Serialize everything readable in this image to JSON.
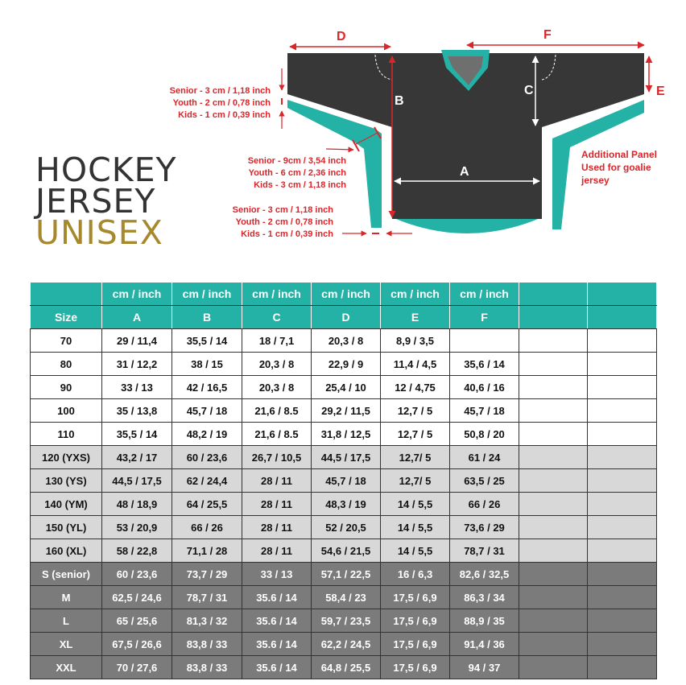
{
  "title": {
    "line1": "HOCKEY",
    "line2": "JERSEY",
    "line3": "UNISEX"
  },
  "diagram": {
    "letters": {
      "A": "A",
      "B": "B",
      "C": "C",
      "D": "D",
      "E": "E",
      "F": "F"
    },
    "note_cuff": [
      "Senior - 3 cm / 1,18 inch",
      "Youth - 2 cm / 0,78 inch",
      "Kids - 1 cm / 0,39 inch"
    ],
    "note_panel_width": [
      "Senior - 9cm / 3,54 inch",
      "Youth - 6 cm / 2,36 inch",
      "Kids - 3 cm / 1,18 inch"
    ],
    "note_panel_bottom": [
      "Senior - 3 cm / 1,18 inch",
      "Youth - 2 cm / 0,78 inch",
      "Kids - 1 cm / 0,39 inch"
    ],
    "additional_panel": [
      "Additional Panel",
      "Used for goalie",
      "jersey"
    ]
  },
  "colors": {
    "teal": "#25b2a6",
    "jersey": "#373737",
    "red": "#d9262b",
    "gold": "#a5892c",
    "youth_row": "#d8d8d9",
    "senior_row": "#7b7b7b"
  },
  "table": {
    "unit_row": [
      "",
      "cm / inch",
      "cm / inch",
      "cm / inch",
      "cm / inch",
      "cm / inch",
      "cm / inch",
      "",
      ""
    ],
    "header_row": [
      "Size",
      "A",
      "B",
      "C",
      "D",
      "E",
      "F",
      "",
      ""
    ],
    "rows": [
      {
        "group": "kids",
        "cells": [
          "70",
          "29 / 11,4",
          "35,5 / 14",
          "18 / 7,1",
          "20,3 / 8",
          "8,9 / 3,5",
          "",
          "",
          ""
        ]
      },
      {
        "group": "kids",
        "cells": [
          "80",
          "31 / 12,2",
          "38 / 15",
          "20,3 / 8",
          "22,9 / 9",
          "11,4 / 4,5",
          "35,6 / 14",
          "",
          ""
        ]
      },
      {
        "group": "kids",
        "cells": [
          "90",
          "33 / 13",
          "42 / 16,5",
          "20,3 / 8",
          "25,4 / 10",
          "12 / 4,75",
          "40,6 / 16",
          "",
          ""
        ]
      },
      {
        "group": "kids",
        "cells": [
          "100",
          "35 / 13,8",
          "45,7 / 18",
          "21,6 / 8.5",
          "29,2 / 11,5",
          "12,7 / 5",
          "45,7 / 18",
          "",
          ""
        ]
      },
      {
        "group": "kids",
        "cells": [
          "110",
          "35,5 / 14",
          "48,2 / 19",
          "21,6 / 8.5",
          "31,8 / 12,5",
          "12,7 / 5",
          "50,8 / 20",
          "",
          ""
        ]
      },
      {
        "group": "youth",
        "cells": [
          "120 (YXS)",
          "43,2 / 17",
          "60 / 23,6",
          "26,7 / 10,5",
          "44,5 / 17,5",
          "12,7/ 5",
          "61 / 24",
          "",
          ""
        ]
      },
      {
        "group": "youth",
        "cells": [
          "130 (YS)",
          "44,5 / 17,5",
          "62 / 24,4",
          "28 / 11",
          "45,7 / 18",
          "12,7/ 5",
          "63,5 / 25",
          "",
          ""
        ]
      },
      {
        "group": "youth",
        "cells": [
          "140 (YM)",
          "48 / 18,9",
          "64 / 25,5",
          "28 / 11",
          "48,3 / 19",
          "14 / 5,5",
          "66 / 26",
          "",
          ""
        ]
      },
      {
        "group": "youth",
        "cells": [
          "150 (YL)",
          "53 / 20,9",
          "66 / 26",
          "28 / 11",
          "52 / 20,5",
          "14 / 5,5",
          "73,6 / 29",
          "",
          ""
        ]
      },
      {
        "group": "youth",
        "cells": [
          "160 (XL)",
          "58 / 22,8",
          "71,1 / 28",
          "28 / 11",
          "54,6 / 21,5",
          "14 / 5,5",
          "78,7 / 31",
          "",
          ""
        ]
      },
      {
        "group": "senior",
        "cells": [
          "S (senior)",
          "60 / 23,6",
          "73,7 / 29",
          "33 / 13",
          "57,1 / 22,5",
          "16 / 6,3",
          "82,6 / 32,5",
          "",
          ""
        ]
      },
      {
        "group": "senior",
        "cells": [
          "M",
          "62,5 / 24,6",
          "78,7 / 31",
          "35.6 / 14",
          "58,4 / 23",
          "17,5 / 6,9",
          "86,3 / 34",
          "",
          ""
        ]
      },
      {
        "group": "senior",
        "cells": [
          "L",
          "65 / 25,6",
          "81,3 / 32",
          "35.6 / 14",
          "59,7 / 23,5",
          "17,5 / 6,9",
          "88,9 / 35",
          "",
          ""
        ]
      },
      {
        "group": "senior",
        "cells": [
          "XL",
          "67,5 / 26,6",
          "83,8 / 33",
          "35.6 / 14",
          "62,2 / 24,5",
          "17,5 / 6,9",
          "91,4 / 36",
          "",
          ""
        ]
      },
      {
        "group": "senior",
        "cells": [
          "XXL",
          "70 / 27,6",
          "83,8 / 33",
          "35.6 / 14",
          "64,8 / 25,5",
          "17,5 / 6,9",
          "94  / 37",
          "",
          ""
        ]
      }
    ]
  }
}
